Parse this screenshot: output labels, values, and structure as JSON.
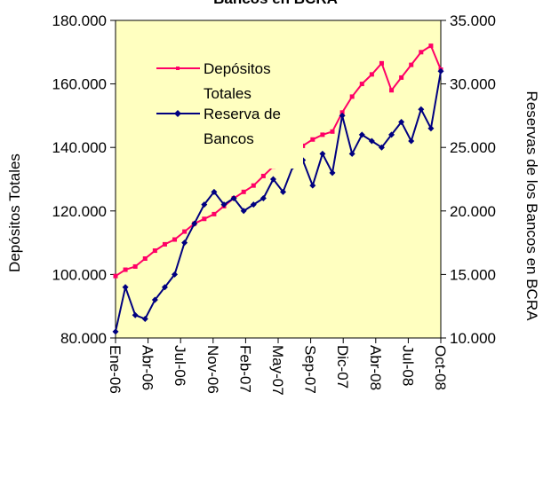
{
  "chart_data": {
    "type": "line",
    "title": "Bancos en BCRA",
    "ylabel": "Depósitos Totales",
    "y2label": "Reservas de los Bancos en BCRA",
    "ylim": [
      80000,
      180000
    ],
    "y2lim": [
      10000,
      35000
    ],
    "y_ticks": [
      "80.000",
      "100.000",
      "120.000",
      "140.000",
      "160.000",
      "180.000"
    ],
    "y2_ticks": [
      "10.000",
      "15.000",
      "20.000",
      "25.000",
      "30.000",
      "35.000"
    ],
    "x_ticks": [
      "Ene-06",
      "Abr-06",
      "Jul-06",
      "Nov-06",
      "Feb-07",
      "May-07",
      "Sep-07",
      "Dic-07",
      "Abr-08",
      "Jul-08",
      "Oct-08"
    ],
    "legend_position": "top-left",
    "plot_background": "#FFFFC0",
    "series": [
      {
        "name": "Depósitos Totales",
        "legend_lines": [
          "Depósitos",
          "Totales"
        ],
        "axis": "left",
        "color": "#FF0066",
        "marker": "square",
        "x": [
          "Ene-06",
          "Feb-06",
          "Mar-06",
          "Abr-06",
          "May-06",
          "Jun-06",
          "Jul-06",
          "Ago-06",
          "Sep-06",
          "Oct-06",
          "Nov-06",
          "Dic-06",
          "Ene-07",
          "Feb-07",
          "Mar-07",
          "Abr-07",
          "May-07",
          "Jun-07",
          "Jul-07",
          "Ago-07",
          "Sep-07",
          "Oct-07",
          "Nov-07",
          "Dic-07",
          "Ene-08",
          "Feb-08",
          "Mar-08",
          "Abr-08",
          "May-08",
          "Jun-08",
          "Jul-08",
          "Ago-08",
          "Sep-08",
          "Oct-08"
        ],
        "values": [
          99500,
          101500,
          102500,
          105000,
          107500,
          109500,
          111000,
          113500,
          116000,
          117500,
          119000,
          121500,
          124000,
          126000,
          128000,
          131000,
          134000,
          137000,
          139000,
          140500,
          142500,
          144000,
          145000,
          151000,
          156000,
          160000,
          163000,
          166500,
          158000,
          162000,
          166000,
          170000,
          172000,
          164500
        ]
      },
      {
        "name": "Reserva de Bancos",
        "legend_lines": [
          "Reserva de",
          "Bancos"
        ],
        "axis": "right",
        "color": "#000080",
        "marker": "diamond",
        "x": [
          "Ene-06",
          "Feb-06",
          "Mar-06",
          "Abr-06",
          "May-06",
          "Jun-06",
          "Jul-06",
          "Ago-06",
          "Sep-06",
          "Oct-06",
          "Nov-06",
          "Dic-06",
          "Ene-07",
          "Feb-07",
          "Mar-07",
          "Abr-07",
          "May-07",
          "Jun-07",
          "Jul-07",
          "Ago-07",
          "Sep-07",
          "Oct-07",
          "Nov-07",
          "Dic-07",
          "Ene-08",
          "Feb-08",
          "Mar-08",
          "Abr-08",
          "May-08",
          "Jun-08",
          "Jul-08",
          "Ago-08",
          "Sep-08",
          "Oct-08"
        ],
        "values": [
          10500,
          14000,
          11800,
          11500,
          13000,
          14000,
          15000,
          17500,
          19000,
          20500,
          21500,
          20500,
          21000,
          20000,
          20500,
          21000,
          22500,
          21500,
          23500,
          24000,
          22000,
          24500,
          23000,
          27500,
          24500,
          26000,
          25500,
          25000,
          26000,
          27000,
          25500,
          28000,
          26500,
          31000
        ]
      }
    ]
  }
}
